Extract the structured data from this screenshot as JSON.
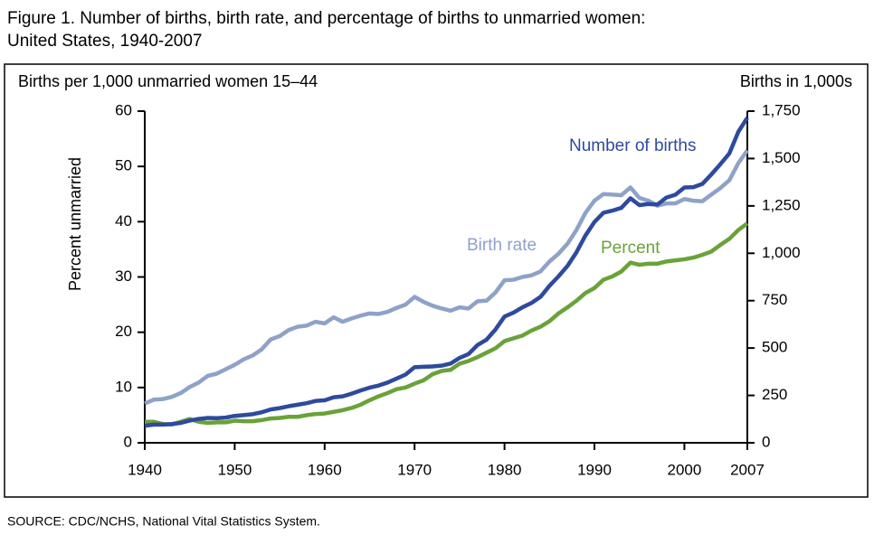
{
  "chart_data": {
    "type": "line",
    "title": [
      "Figure 1.  Number of births, birth rate, and percentage of births to unmarried women:",
      "United States, 1940-2007"
    ],
    "y_label_top": "Births per 1,000 unmarried women 15–44",
    "y_label": "Percent unmarried",
    "y2_label": "Births in 1,000s",
    "source": "SOURCE: CDC/NCHS, National Vital Statistics System.",
    "x": [
      1940,
      1941,
      1942,
      1943,
      1944,
      1945,
      1946,
      1947,
      1948,
      1949,
      1950,
      1951,
      1952,
      1953,
      1954,
      1955,
      1956,
      1957,
      1958,
      1959,
      1960,
      1961,
      1962,
      1963,
      1964,
      1965,
      1966,
      1967,
      1968,
      1969,
      1970,
      1971,
      1972,
      1973,
      1974,
      1975,
      1976,
      1977,
      1978,
      1979,
      1980,
      1981,
      1982,
      1983,
      1984,
      1985,
      1986,
      1987,
      1988,
      1989,
      1990,
      1991,
      1992,
      1993,
      1994,
      1995,
      1996,
      1997,
      1998,
      1999,
      2000,
      2001,
      2002,
      2003,
      2004,
      2005,
      2006,
      2007
    ],
    "xlim": [
      1940,
      2007
    ],
    "xticks": [
      1940,
      1950,
      1960,
      1970,
      1980,
      1990,
      2000,
      2007
    ],
    "ylim": [
      0,
      60
    ],
    "yticks": [
      0,
      10,
      20,
      30,
      40,
      50,
      60
    ],
    "y2lim": [
      0,
      1750
    ],
    "y2ticks": [
      0,
      250,
      500,
      750,
      {
        "value": 1000,
        "label": "1,000"
      },
      {
        "value": 1250,
        "label": "1,250"
      },
      {
        "value": 1500,
        "label": "1,500"
      },
      {
        "value": 1750,
        "label": "1,750"
      }
    ],
    "series": [
      {
        "name": "Birth rate",
        "color": "#8ea2c8",
        "values": [
          7.1,
          7.8,
          7.9,
          8.3,
          9.0,
          10.1,
          10.9,
          12.1,
          12.5,
          13.3,
          14.1,
          15.1,
          15.8,
          16.9,
          18.7,
          19.3,
          20.4,
          21.0,
          21.2,
          21.9,
          21.6,
          22.7,
          21.9,
          22.5,
          23.0,
          23.4,
          23.3,
          23.7,
          24.4,
          25.0,
          26.4,
          25.5,
          24.8,
          24.3,
          23.9,
          24.5,
          24.3,
          25.6,
          25.7,
          27.2,
          29.4,
          29.5,
          30.0,
          30.3,
          31.0,
          32.8,
          34.2,
          36.0,
          38.5,
          41.6,
          43.8,
          45.0,
          44.9,
          44.8,
          46.2,
          44.3,
          43.8,
          42.9,
          43.3,
          43.3,
          44.1,
          43.8,
          43.7,
          44.9,
          46.1,
          47.5,
          50.6,
          52.9
        ]
      },
      {
        "name": "Percent",
        "color": "#6aa23a",
        "values": [
          3.8,
          3.8,
          3.4,
          3.3,
          3.8,
          4.3,
          3.8,
          3.6,
          3.7,
          3.7,
          4.0,
          3.9,
          3.9,
          4.1,
          4.4,
          4.5,
          4.7,
          4.7,
          5.0,
          5.2,
          5.3,
          5.6,
          5.9,
          6.3,
          6.9,
          7.7,
          8.4,
          9.0,
          9.7,
          10.0,
          10.7,
          11.3,
          12.4,
          13.0,
          13.2,
          14.3,
          14.8,
          15.5,
          16.3,
          17.1,
          18.4,
          18.9,
          19.4,
          20.3,
          21.0,
          22.0,
          23.4,
          24.5,
          25.7,
          27.1,
          28.0,
          29.5,
          30.1,
          31.0,
          32.6,
          32.2,
          32.4,
          32.4,
          32.8,
          33.0,
          33.2,
          33.5,
          34.0,
          34.6,
          35.8,
          36.9,
          38.5,
          39.7
        ]
      },
      {
        "name": "Number of births",
        "color": "#2e4a9e",
        "axis": "y2",
        "values": [
          90,
          96,
          96,
          99,
          105,
          117,
          126,
          131,
          130,
          133,
          142,
          146,
          151,
          161,
          176,
          183,
          193,
          201,
          209,
          221,
          224,
          240,
          245,
          259,
          276,
          291,
          302,
          318,
          339,
          360,
          399,
          401,
          403,
          407,
          418,
          448,
          468,
          516,
          544,
          598,
          666,
          687,
          715,
          738,
          770,
          828,
          878,
          933,
          1005,
          1094,
          1165,
          1214,
          1225,
          1240,
          1290,
          1254,
          1260,
          1257,
          1294,
          1309,
          1347,
          1349,
          1366,
          1416,
          1470,
          1527,
          1641,
          1715
        ]
      }
    ]
  }
}
